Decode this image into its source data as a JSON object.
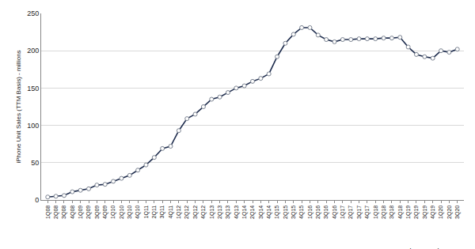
{
  "chart_data": {
    "type": "line",
    "y_label": "iPhone Unit Sales (TTM Basis) - millions",
    "source": "Source: Company Reports, AboveAvalon.com",
    "categories": [
      "1Q08",
      "2Q08",
      "3Q08",
      "4Q08",
      "1Q09",
      "2Q09",
      "3Q09",
      "4Q09",
      "1Q10",
      "2Q10",
      "3Q10",
      "4Q10",
      "1Q11",
      "2Q11",
      "3Q11",
      "4Q11",
      "1Q12",
      "2Q12",
      "3Q12",
      "4Q12",
      "1Q13",
      "2Q13",
      "3Q13",
      "4Q13",
      "1Q14",
      "2Q14",
      "3Q14",
      "4Q14",
      "1Q15",
      "2Q15",
      "3Q15",
      "4Q15",
      "1Q16",
      "2Q16",
      "3Q16",
      "4Q16",
      "1Q17",
      "2Q17",
      "3Q17",
      "4Q17",
      "1Q18",
      "2Q18",
      "3Q18",
      "4Q18",
      "1Q19",
      "2Q19",
      "3Q19",
      "4Q19",
      "1Q20",
      "2Q20",
      "3Q20"
    ],
    "values": [
      4,
      5,
      6,
      11,
      13,
      15,
      20,
      21,
      25,
      29,
      33,
      40,
      47,
      57,
      69,
      72,
      93,
      109,
      115,
      125,
      135,
      138,
      144,
      150,
      153,
      159,
      163,
      169,
      192,
      210,
      222,
      231,
      231,
      221,
      215,
      212,
      215,
      215,
      216,
      216,
      216,
      217,
      217,
      218,
      205,
      195,
      192,
      190,
      200,
      198,
      202
    ],
    "color": "#1f2d4e",
    "marker": "circle",
    "ylim": [
      0,
      250
    ],
    "yticks": [
      0,
      50,
      100,
      150,
      200,
      250
    ],
    "grid": true
  }
}
